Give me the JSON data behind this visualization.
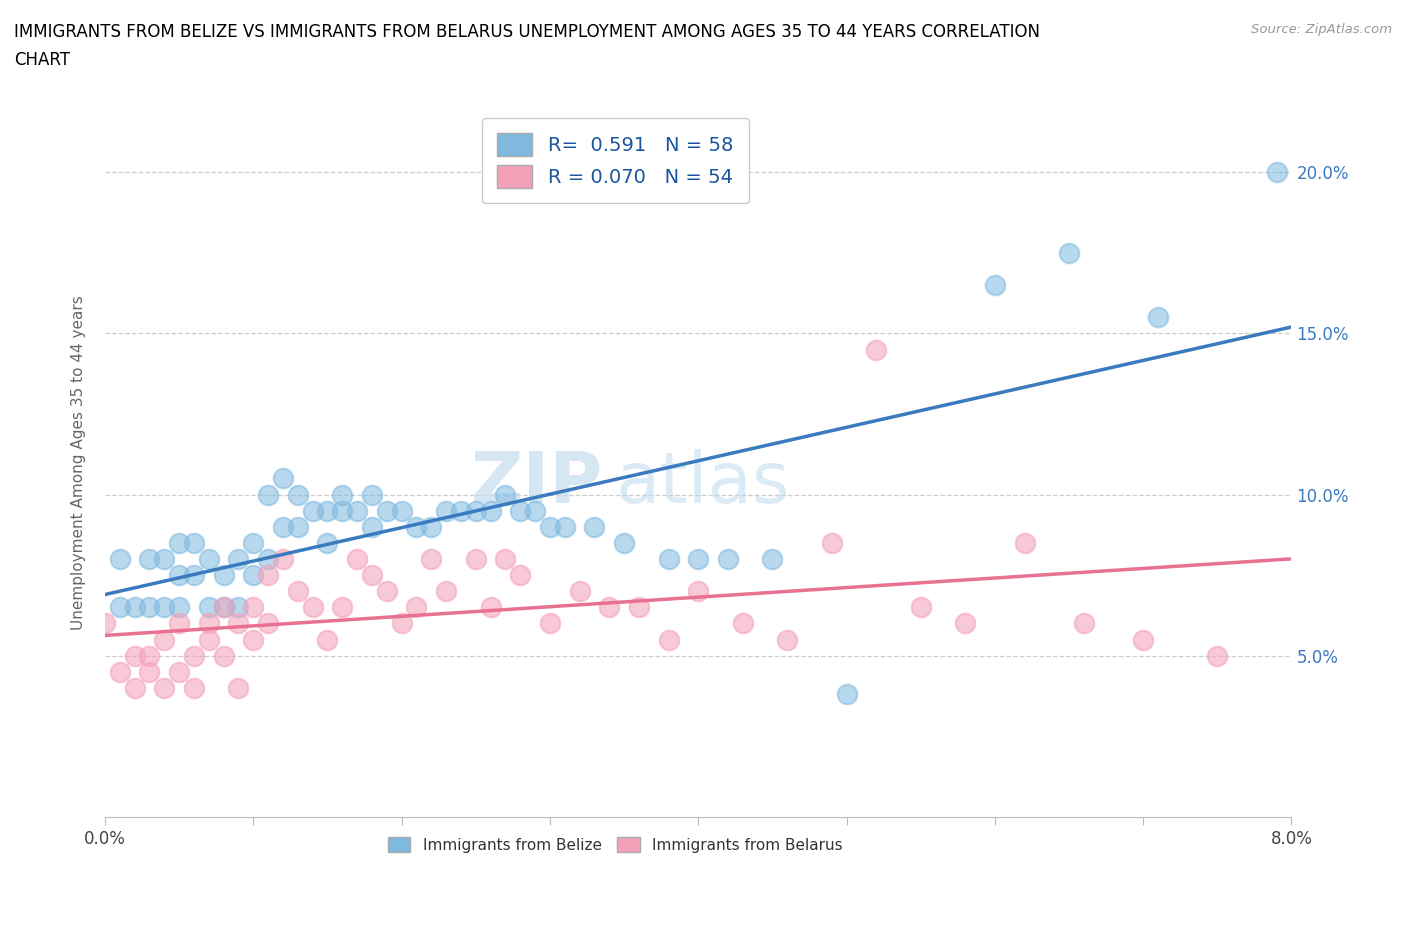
{
  "title": "IMMIGRANTS FROM BELIZE VS IMMIGRANTS FROM BELARUS UNEMPLOYMENT AMONG AGES 35 TO 44 YEARS CORRELATION\nCHART",
  "source": "Source: ZipAtlas.com",
  "ylabel": "Unemployment Among Ages 35 to 44 years",
  "belize_color": "#7fb9e0",
  "belarus_color": "#f4a0b8",
  "belize_line_color": "#3a7abf",
  "belarus_line_color": "#e87090",
  "R_belize": 0.591,
  "N_belize": 58,
  "R_belarus": 0.07,
  "N_belarus": 54,
  "xlim": [
    0.0,
    0.08
  ],
  "ylim": [
    0.0,
    0.22
  ],
  "xticks": [
    0.0,
    0.01,
    0.02,
    0.03,
    0.04,
    0.05,
    0.06,
    0.07,
    0.08
  ],
  "yticks": [
    0.05,
    0.1,
    0.15,
    0.2
  ],
  "watermark_zip": "ZIP",
  "watermark_atlas": "atlas",
  "legend_label_belize": "Immigrants from Belize",
  "legend_label_belarus": "Immigrants from Belarus",
  "belize_x": [
    0.001,
    0.001,
    0.002,
    0.003,
    0.003,
    0.004,
    0.004,
    0.005,
    0.005,
    0.005,
    0.006,
    0.006,
    0.007,
    0.007,
    0.008,
    0.008,
    0.009,
    0.009,
    0.01,
    0.01,
    0.011,
    0.011,
    0.012,
    0.012,
    0.013,
    0.013,
    0.014,
    0.015,
    0.015,
    0.016,
    0.016,
    0.017,
    0.018,
    0.018,
    0.019,
    0.02,
    0.021,
    0.022,
    0.023,
    0.024,
    0.025,
    0.026,
    0.027,
    0.028,
    0.029,
    0.03,
    0.031,
    0.033,
    0.035,
    0.038,
    0.04,
    0.042,
    0.045,
    0.05,
    0.06,
    0.065,
    0.071,
    0.079
  ],
  "belize_y": [
    0.065,
    0.08,
    0.065,
    0.065,
    0.08,
    0.065,
    0.08,
    0.065,
    0.075,
    0.085,
    0.075,
    0.085,
    0.065,
    0.08,
    0.065,
    0.075,
    0.065,
    0.08,
    0.075,
    0.085,
    0.08,
    0.1,
    0.09,
    0.105,
    0.09,
    0.1,
    0.095,
    0.085,
    0.095,
    0.095,
    0.1,
    0.095,
    0.09,
    0.1,
    0.095,
    0.095,
    0.09,
    0.09,
    0.095,
    0.095,
    0.095,
    0.095,
    0.1,
    0.095,
    0.095,
    0.09,
    0.09,
    0.09,
    0.085,
    0.08,
    0.08,
    0.08,
    0.08,
    0.038,
    0.165,
    0.175,
    0.155,
    0.2
  ],
  "belarus_x": [
    0.0,
    0.001,
    0.002,
    0.002,
    0.003,
    0.003,
    0.004,
    0.004,
    0.005,
    0.005,
    0.006,
    0.006,
    0.007,
    0.007,
    0.008,
    0.008,
    0.009,
    0.009,
    0.01,
    0.01,
    0.011,
    0.011,
    0.012,
    0.013,
    0.014,
    0.015,
    0.016,
    0.017,
    0.018,
    0.019,
    0.02,
    0.021,
    0.022,
    0.023,
    0.025,
    0.026,
    0.027,
    0.028,
    0.03,
    0.032,
    0.034,
    0.036,
    0.038,
    0.04,
    0.043,
    0.046,
    0.049,
    0.052,
    0.055,
    0.058,
    0.062,
    0.066,
    0.07,
    0.075
  ],
  "belarus_y": [
    0.06,
    0.045,
    0.05,
    0.04,
    0.05,
    0.045,
    0.055,
    0.04,
    0.045,
    0.06,
    0.05,
    0.04,
    0.06,
    0.055,
    0.065,
    0.05,
    0.06,
    0.04,
    0.065,
    0.055,
    0.06,
    0.075,
    0.08,
    0.07,
    0.065,
    0.055,
    0.065,
    0.08,
    0.075,
    0.07,
    0.06,
    0.065,
    0.08,
    0.07,
    0.08,
    0.065,
    0.08,
    0.075,
    0.06,
    0.07,
    0.065,
    0.065,
    0.055,
    0.07,
    0.06,
    0.055,
    0.085,
    0.145,
    0.065,
    0.06,
    0.085,
    0.06,
    0.055,
    0.05
  ]
}
